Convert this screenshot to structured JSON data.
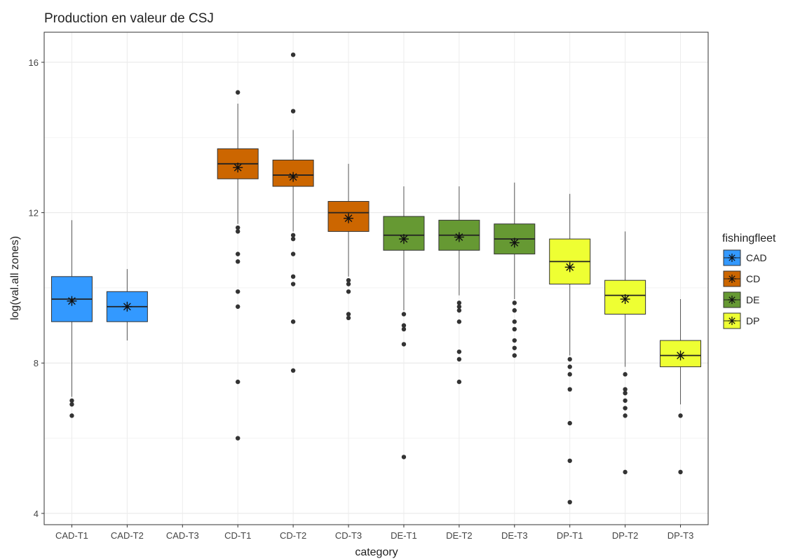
{
  "chart_data": {
    "type": "box",
    "title": "Production en valeur de CSJ",
    "xlabel": "category",
    "ylabel": "log(val.all zones)",
    "ylim": [
      3.7,
      16.8
    ],
    "yticks": [
      4,
      8,
      12,
      16
    ],
    "grid": true,
    "legend_position": "right",
    "legend_title": "fishingfleet",
    "legend": [
      {
        "name": "CAD",
        "color": "#3399FF"
      },
      {
        "name": "CD",
        "color": "#CC6600"
      },
      {
        "name": "DE",
        "color": "#669933"
      },
      {
        "name": "DP",
        "color": "#EEFF33"
      }
    ],
    "categories": [
      "CAD-T1",
      "CAD-T2",
      "CAD-T3",
      "CD-T1",
      "CD-T2",
      "CD-T3",
      "DE-T1",
      "DE-T2",
      "DE-T3",
      "DP-T1",
      "DP-T2",
      "DP-T3"
    ],
    "boxes": [
      {
        "category": "CAD-T1",
        "fleet": "CAD",
        "min": 7.1,
        "q1": 9.1,
        "median": 9.7,
        "q3": 10.3,
        "max": 11.8,
        "mean": 9.65,
        "outliers": [
          7.0,
          6.9,
          6.6
        ]
      },
      {
        "category": "CAD-T2",
        "fleet": "CAD",
        "min": 8.6,
        "q1": 9.1,
        "median": 9.5,
        "q3": 9.9,
        "max": 10.5,
        "mean": 9.5,
        "outliers": []
      },
      {
        "category": "CD-T1",
        "fleet": "CD",
        "min": 11.7,
        "q1": 12.9,
        "median": 13.3,
        "q3": 13.7,
        "max": 14.9,
        "mean": 13.2,
        "outliers": [
          15.2,
          11.6,
          11.5,
          10.9,
          10.7,
          9.9,
          9.5,
          7.5,
          6.0
        ]
      },
      {
        "category": "CD-T2",
        "fleet": "CD",
        "min": 11.5,
        "q1": 12.7,
        "median": 13.0,
        "q3": 13.4,
        "max": 14.2,
        "mean": 12.95,
        "outliers": [
          16.2,
          14.7,
          11.4,
          11.3,
          10.9,
          10.3,
          10.1,
          9.1,
          7.8
        ]
      },
      {
        "category": "CD-T3",
        "fleet": "CD",
        "min": 10.3,
        "q1": 11.5,
        "median": 12.0,
        "q3": 12.3,
        "max": 13.3,
        "mean": 11.85,
        "outliers": [
          10.2,
          10.1,
          9.9,
          9.3,
          9.2
        ]
      },
      {
        "category": "DE-T1",
        "fleet": "DE",
        "min": 9.4,
        "q1": 11.0,
        "median": 11.4,
        "q3": 11.9,
        "max": 12.7,
        "mean": 11.3,
        "outliers": [
          9.3,
          9.0,
          8.9,
          8.5,
          5.5
        ]
      },
      {
        "category": "DE-T2",
        "fleet": "DE",
        "min": 9.8,
        "q1": 11.0,
        "median": 11.4,
        "q3": 11.8,
        "max": 12.7,
        "mean": 11.35,
        "outliers": [
          9.6,
          9.5,
          9.4,
          9.1,
          8.3,
          8.1,
          7.5
        ]
      },
      {
        "category": "DE-T3",
        "fleet": "DE",
        "min": 9.7,
        "q1": 10.9,
        "median": 11.3,
        "q3": 11.7,
        "max": 12.8,
        "mean": 11.2,
        "outliers": [
          9.6,
          9.4,
          9.1,
          8.9,
          8.6,
          8.4,
          8.2
        ]
      },
      {
        "category": "DP-T1",
        "fleet": "DP",
        "min": 8.2,
        "q1": 10.1,
        "median": 10.7,
        "q3": 11.3,
        "max": 12.5,
        "mean": 10.55,
        "outliers": [
          8.1,
          7.9,
          7.7,
          7.3,
          6.4,
          5.4,
          4.3
        ]
      },
      {
        "category": "DP-T2",
        "fleet": "DP",
        "min": 7.9,
        "q1": 9.3,
        "median": 9.8,
        "q3": 10.2,
        "max": 11.5,
        "mean": 9.7,
        "outliers": [
          7.7,
          7.3,
          7.2,
          7.0,
          6.8,
          6.6,
          5.1
        ]
      },
      {
        "category": "DP-T3",
        "fleet": "DP",
        "min": 6.9,
        "q1": 7.9,
        "median": 8.2,
        "q3": 8.6,
        "max": 9.7,
        "mean": 8.2,
        "outliers": [
          6.6,
          5.1
        ]
      }
    ]
  }
}
